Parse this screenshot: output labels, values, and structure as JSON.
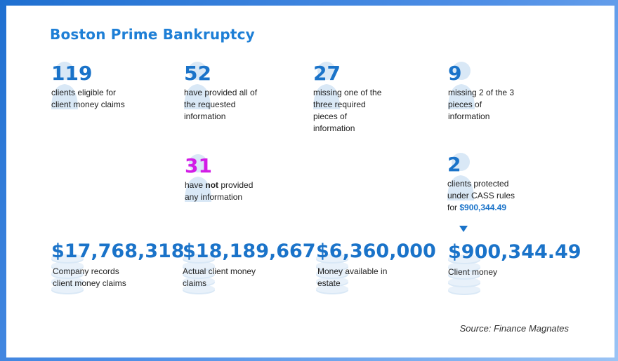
{
  "title": "Boston Prime Bankruptcy",
  "colors": {
    "accent": "#1a73c9",
    "highlight": "#d21ce6",
    "icon_fill": "#d9e8f6"
  },
  "stats": [
    {
      "number": "119",
      "text": "clients eligible for\nclient money claims",
      "icon": "person-icon"
    },
    {
      "number": "52",
      "text": "have provided all of\nthe requested\ninformation",
      "icon": "person-icon"
    },
    {
      "number": "27",
      "text": " missing one of the\nthree required\npieces of\ninformation",
      "icon": "person-icon"
    },
    {
      "number": "9",
      "text": "missing 2 of the 3\npieces of\ninformation",
      "icon": "person-icon"
    },
    {
      "number": "31",
      "text_before": "have ",
      "text_bold": "not",
      "text_after": " provided\nany information",
      "icon": "person-icon"
    },
    {
      "number": "2",
      "text": "clients protected\nunder CASS rules\nfor ",
      "text_highlight": "$900,344.49",
      "icon": "person-icon"
    }
  ],
  "money": [
    {
      "amount": "$17,768,318",
      "text": "Company records\nclient money claims",
      "icon": "coins-icon"
    },
    {
      "amount": "$18,189,667",
      "text": "Actual client money\nclaims",
      "icon": "coins-icon"
    },
    {
      "amount": "$6,360,000",
      "text": "Money available in\nestate",
      "icon": "coins-icon"
    },
    {
      "amount": "$900,344.49",
      "text": "Client money",
      "icon": "coins-icon"
    }
  ],
  "source": "Source: Finance Magnates"
}
